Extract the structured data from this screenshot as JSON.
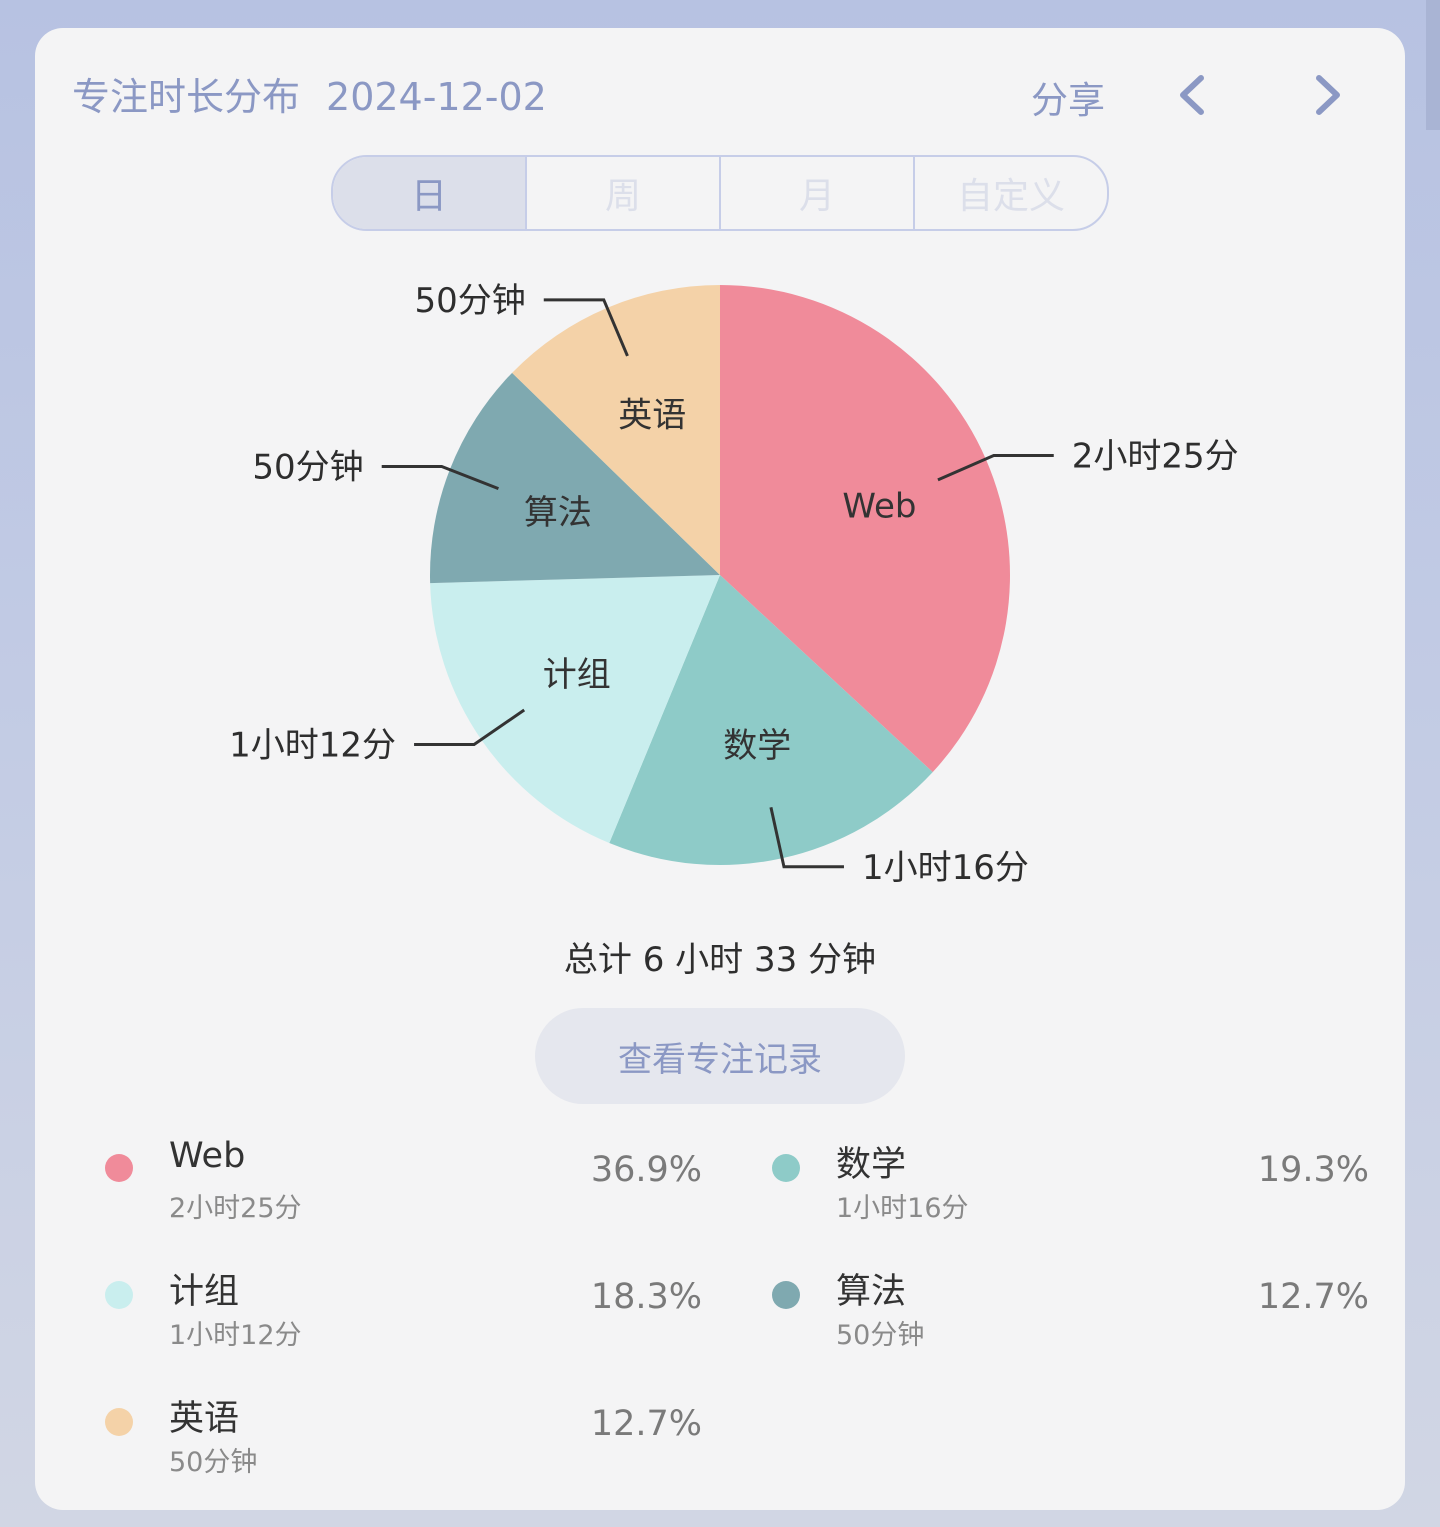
{
  "header": {
    "title": "专注时长分布",
    "date": "2024-12-02",
    "share_label": "分享",
    "prev_icon": "chevron-left-icon",
    "next_icon": "chevron-right-icon"
  },
  "tabs": [
    {
      "label": "日",
      "active": true
    },
    {
      "label": "周",
      "active": false
    },
    {
      "label": "月",
      "active": false
    },
    {
      "label": "自定义",
      "active": false
    }
  ],
  "chart_data": {
    "type": "pie",
    "slices": [
      {
        "name": "Web",
        "label": "2小时25分",
        "minutes": 145,
        "percent": 36.9,
        "color": "#f08b9a"
      },
      {
        "name": "数学",
        "label": "1小时16分",
        "minutes": 76,
        "percent": 19.3,
        "color": "#8ecbc8"
      },
      {
        "name": "计组",
        "label": "1小时12分",
        "minutes": 72,
        "percent": 18.3,
        "color": "#c9eeee"
      },
      {
        "name": "算法",
        "label": "50分钟",
        "minutes": 50,
        "percent": 12.7,
        "color": "#7fa9b0"
      },
      {
        "name": "英语",
        "label": "50分钟",
        "minutes": 50,
        "percent": 12.7,
        "color": "#f4d2a8"
      }
    ]
  },
  "summary": {
    "total_text": "总计 6 小时 33 分钟"
  },
  "records_button": {
    "label": "查看专注记录"
  },
  "legend": [
    {
      "name": "Web",
      "time": "2小时25分",
      "percent": "36.9%",
      "color": "#f08b9a"
    },
    {
      "name": "数学",
      "time": "1小时16分",
      "percent": "19.3%",
      "color": "#8ecbc8"
    },
    {
      "name": "计组",
      "time": "1小时12分",
      "percent": "18.3%",
      "color": "#c9eeee"
    },
    {
      "name": "算法",
      "time": "50分钟",
      "percent": "12.7%",
      "color": "#7fa9b0"
    },
    {
      "name": "英语",
      "time": "50分钟",
      "percent": "12.7%",
      "color": "#f4d2a8"
    }
  ]
}
